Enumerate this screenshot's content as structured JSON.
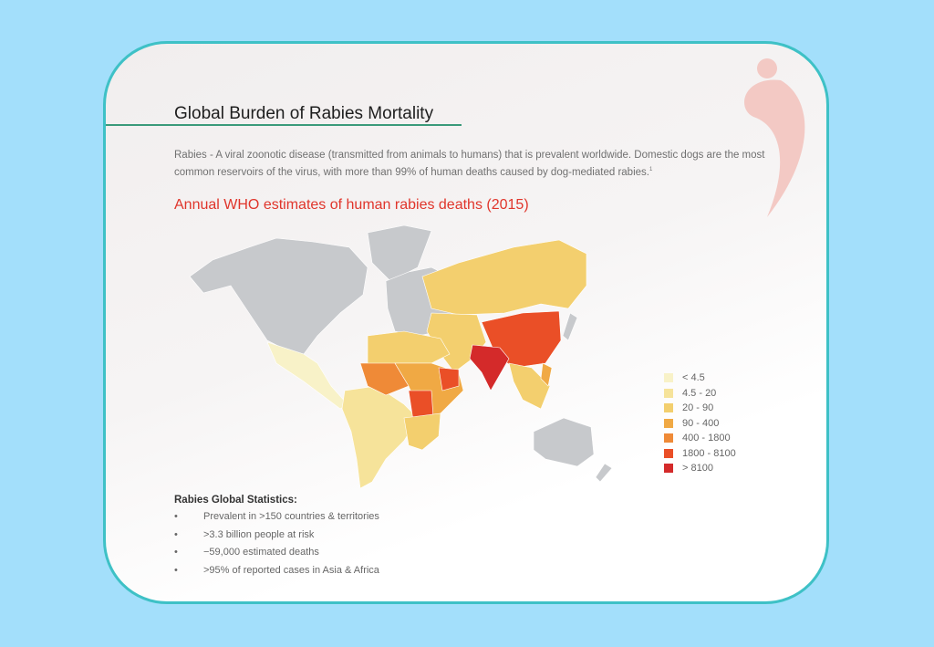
{
  "title": "Global Burden of Rabies Mortality",
  "description": "Rabies - A viral zoonotic disease (transmitted from animals to humans) that is prevalent worldwide. Domestic dogs are the most common reservoirs of the virus, with more than 99% of human deaths caused by dog-mediated rabies.",
  "description_footnote": "1",
  "map_title": "Annual WHO estimates of human rabies deaths (2015)",
  "legend": [
    {
      "label": "< 4.5",
      "color": "#f8f2c8"
    },
    {
      "label": "4.5 - 20",
      "color": "#f6e39a"
    },
    {
      "label": "20 - 90",
      "color": "#f3cf6e"
    },
    {
      "label": "90 - 400",
      "color": "#f0a944"
    },
    {
      "label": "400 - 1800",
      "color": "#ef8a37"
    },
    {
      "label": "1800 - 8100",
      "color": "#ea4f27"
    },
    {
      "label": "> 8100",
      "color": "#d42a2a"
    }
  ],
  "no_data_color": "#c7c9cc",
  "stats": {
    "heading": "Rabies Global Statistics:",
    "items": [
      "Prevalent in >150 countries & territories",
      ">3.3 billion people at risk",
      "−59,000 estimated deaths",
      ">95% of reported cases in Asia & Africa"
    ]
  }
}
